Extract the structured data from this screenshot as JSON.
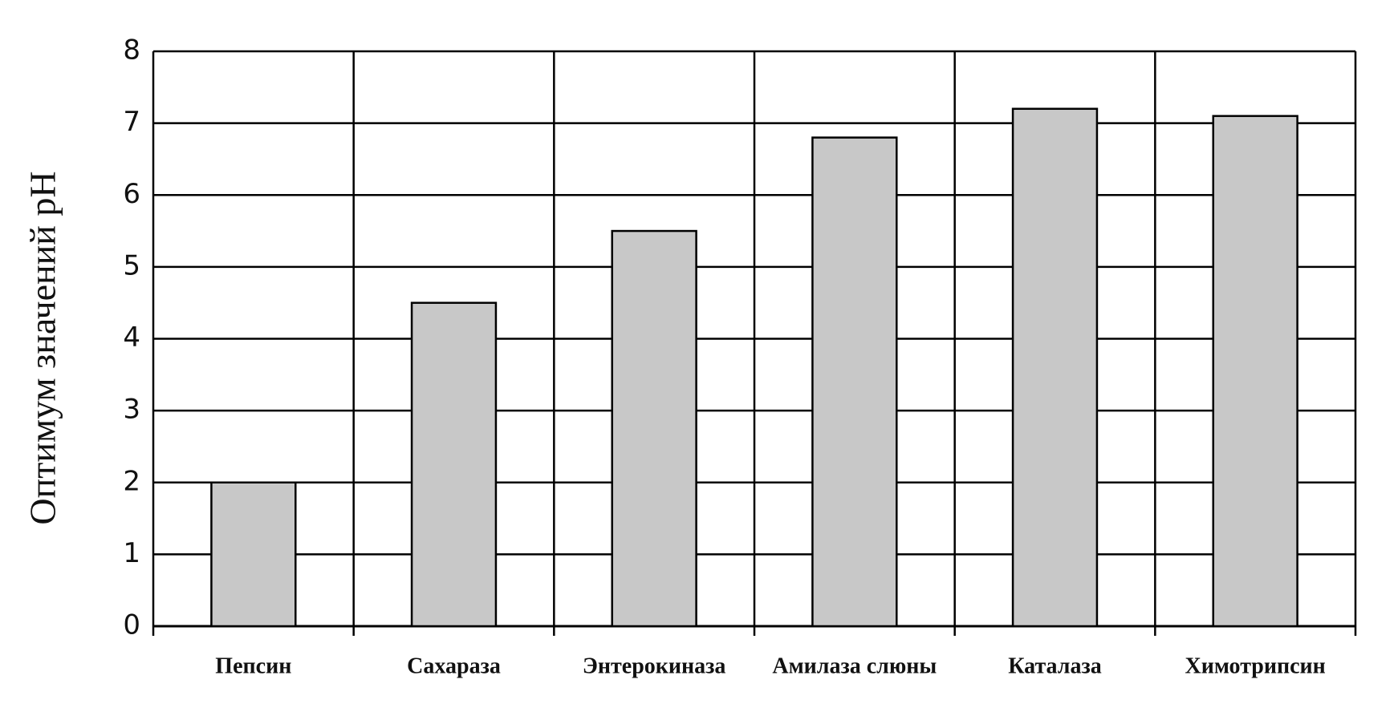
{
  "chart_data": {
    "type": "bar",
    "y_label": "Оптимум значений pH",
    "categories": [
      "Пепсин",
      "Сахараза",
      "Энтерокиназа",
      "Амилаза слюны",
      "Каталаза",
      "Химотрипсин"
    ],
    "values": [
      2,
      4.5,
      5.5,
      6.8,
      7.2,
      7.1
    ],
    "color": "#c8c8c8",
    "ylim": [
      0,
      8
    ],
    "yticks": [
      0,
      1,
      2,
      3,
      4,
      5,
      6,
      7,
      8
    ],
    "grid": true
  }
}
